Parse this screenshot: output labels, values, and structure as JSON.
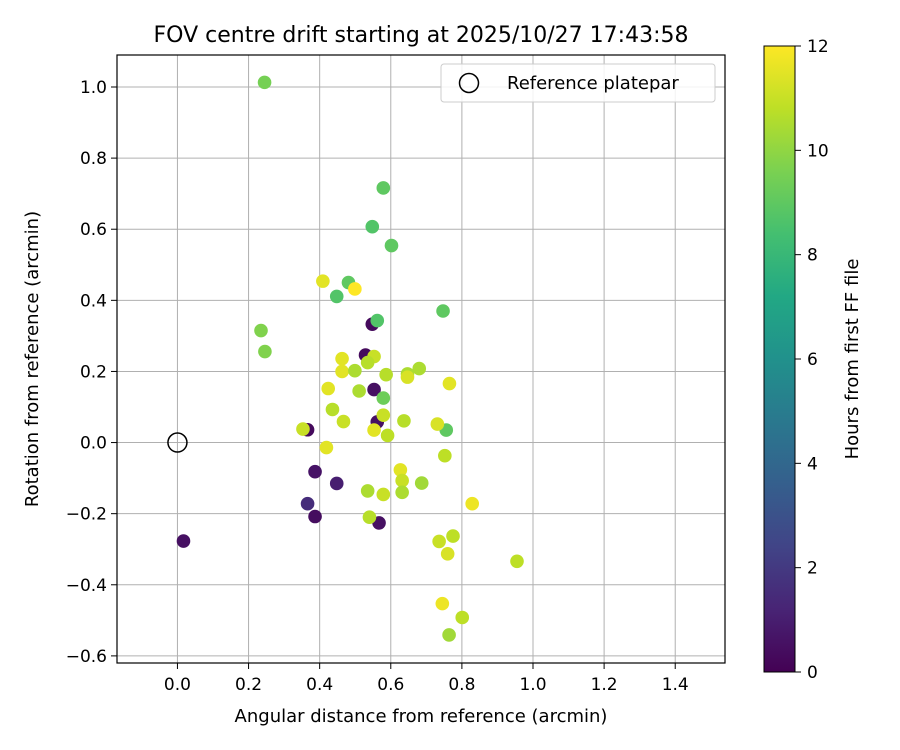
{
  "chart_data": {
    "type": "scatter",
    "title": "FOV centre drift starting at 2025/10/27 17:43:58",
    "xlabel": "Angular distance from reference (arcmin)",
    "ylabel": "Rotation from reference (arcmin)",
    "xlim": [
      -0.17,
      1.54
    ],
    "ylim": [
      -0.62,
      1.09
    ],
    "xticks": [
      0.0,
      0.2,
      0.4,
      0.6,
      0.8,
      1.0,
      1.2,
      1.4
    ],
    "xtick_labels": [
      "0.0",
      "0.2",
      "0.4",
      "0.6",
      "0.8",
      "1.0",
      "1.2",
      "1.4"
    ],
    "yticks": [
      -0.6,
      -0.4,
      -0.2,
      0.0,
      0.2,
      0.4,
      0.6,
      0.8,
      1.0
    ],
    "ytick_labels": [
      "−0.6",
      "−0.4",
      "−0.2",
      "0.0",
      "0.2",
      "0.4",
      "0.6",
      "0.8",
      "1.0"
    ],
    "grid": true,
    "legend": {
      "position": "top-right",
      "entries": [
        "Reference platepar"
      ]
    },
    "reference_point": {
      "x": 0.0,
      "y": 0.0
    },
    "colorbar": {
      "label": "Hours from first FF file",
      "range": [
        0,
        12
      ],
      "ticks": [
        0,
        2,
        4,
        6,
        8,
        10,
        12
      ],
      "colormap": "viridis"
    },
    "series": [
      {
        "points": [
          {
            "x": 0.017,
            "y": -0.277,
            "c": 0.5
          },
          {
            "x": 0.366,
            "y": 0.036,
            "c": 0.3
          },
          {
            "x": 0.366,
            "y": -0.172,
            "c": 1.5
          },
          {
            "x": 0.387,
            "y": -0.082,
            "c": 0.6
          },
          {
            "x": 0.387,
            "y": -0.208,
            "c": 0.4
          },
          {
            "x": 0.448,
            "y": -0.115,
            "c": 1.0
          },
          {
            "x": 0.529,
            "y": 0.246,
            "c": 0.3
          },
          {
            "x": 0.548,
            "y": 0.333,
            "c": 0.3
          },
          {
            "x": 0.553,
            "y": 0.149,
            "c": 0.5
          },
          {
            "x": 0.562,
            "y": 0.058,
            "c": 0.5
          },
          {
            "x": 0.567,
            "y": -0.226,
            "c": 0.5
          },
          {
            "x": 0.245,
            "y": 1.013,
            "c": 9.5
          },
          {
            "x": 0.579,
            "y": 0.716,
            "c": 9.0
          },
          {
            "x": 0.548,
            "y": 0.607,
            "c": 8.7
          },
          {
            "x": 0.602,
            "y": 0.554,
            "c": 9.0
          },
          {
            "x": 0.481,
            "y": 0.45,
            "c": 9.0
          },
          {
            "x": 0.448,
            "y": 0.411,
            "c": 8.7
          },
          {
            "x": 0.747,
            "y": 0.37,
            "c": 9.0
          },
          {
            "x": 0.562,
            "y": 0.343,
            "c": 8.7
          },
          {
            "x": 0.235,
            "y": 0.315,
            "c": 9.7
          },
          {
            "x": 0.246,
            "y": 0.256,
            "c": 9.7
          },
          {
            "x": 0.579,
            "y": 0.125,
            "c": 9.3
          },
          {
            "x": 0.756,
            "y": 0.035,
            "c": 9.0
          },
          {
            "x": 0.409,
            "y": 0.454,
            "c": 11.5
          },
          {
            "x": 0.499,
            "y": 0.432,
            "c": 12.0
          },
          {
            "x": 0.553,
            "y": 0.242,
            "c": 11.0
          },
          {
            "x": 0.463,
            "y": 0.236,
            "c": 11.5
          },
          {
            "x": 0.535,
            "y": 0.225,
            "c": 10.7
          },
          {
            "x": 0.68,
            "y": 0.208,
            "c": 10.5
          },
          {
            "x": 0.463,
            "y": 0.2,
            "c": 11.5
          },
          {
            "x": 0.499,
            "y": 0.202,
            "c": 10.5
          },
          {
            "x": 0.647,
            "y": 0.193,
            "c": 10.5
          },
          {
            "x": 0.587,
            "y": 0.191,
            "c": 10.7
          },
          {
            "x": 0.647,
            "y": 0.184,
            "c": 11.3
          },
          {
            "x": 0.765,
            "y": 0.166,
            "c": 11.5
          },
          {
            "x": 0.424,
            "y": 0.152,
            "c": 11.5
          },
          {
            "x": 0.511,
            "y": 0.145,
            "c": 10.5
          },
          {
            "x": 0.436,
            "y": 0.093,
            "c": 10.7
          },
          {
            "x": 0.579,
            "y": 0.077,
            "c": 11.0
          },
          {
            "x": 0.637,
            "y": 0.061,
            "c": 10.7
          },
          {
            "x": 0.467,
            "y": 0.059,
            "c": 11.0
          },
          {
            "x": 0.731,
            "y": 0.052,
            "c": 11.3
          },
          {
            "x": 0.353,
            "y": 0.038,
            "c": 11.0
          },
          {
            "x": 0.553,
            "y": 0.035,
            "c": 11.5
          },
          {
            "x": 0.591,
            "y": 0.02,
            "c": 10.8
          },
          {
            "x": 0.419,
            "y": -0.014,
            "c": 11.5
          },
          {
            "x": 0.752,
            "y": -0.037,
            "c": 10.8
          },
          {
            "x": 0.627,
            "y": -0.077,
            "c": 11.5
          },
          {
            "x": 0.632,
            "y": -0.107,
            "c": 11.0
          },
          {
            "x": 0.687,
            "y": -0.114,
            "c": 10.3
          },
          {
            "x": 0.535,
            "y": -0.136,
            "c": 10.5
          },
          {
            "x": 0.632,
            "y": -0.14,
            "c": 10.5
          },
          {
            "x": 0.579,
            "y": -0.146,
            "c": 11.0
          },
          {
            "x": 0.829,
            "y": -0.172,
            "c": 11.7
          },
          {
            "x": 0.54,
            "y": -0.21,
            "c": 10.7
          },
          {
            "x": 0.775,
            "y": -0.263,
            "c": 10.8
          },
          {
            "x": 0.736,
            "y": -0.278,
            "c": 11.0
          },
          {
            "x": 0.76,
            "y": -0.313,
            "c": 11.3
          },
          {
            "x": 0.955,
            "y": -0.334,
            "c": 10.8
          },
          {
            "x": 0.745,
            "y": -0.453,
            "c": 11.7
          },
          {
            "x": 0.801,
            "y": -0.492,
            "c": 10.8
          },
          {
            "x": 0.764,
            "y": -0.541,
            "c": 10.3
          }
        ]
      }
    ]
  }
}
